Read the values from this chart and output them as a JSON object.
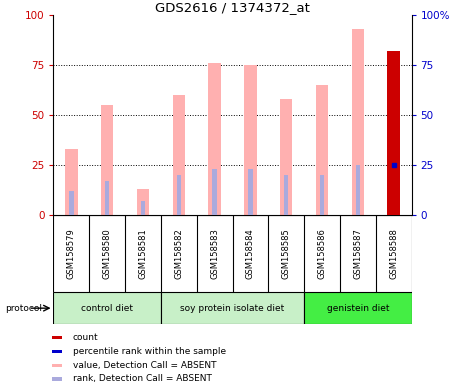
{
  "title": "GDS2616 / 1374372_at",
  "samples": [
    "GSM158579",
    "GSM158580",
    "GSM158581",
    "GSM158582",
    "GSM158583",
    "GSM158584",
    "GSM158585",
    "GSM158586",
    "GSM158587",
    "GSM158588"
  ],
  "pink_bar_heights": [
    33,
    55,
    13,
    60,
    76,
    75,
    58,
    65,
    93,
    82
  ],
  "blue_rank_vals": [
    12,
    17,
    7,
    20,
    23,
    23,
    20,
    20,
    25,
    25
  ],
  "red_count_val": 82,
  "red_count_idx": 9,
  "blue_dot_val": 25,
  "blue_dot_idx": 9,
  "groups": [
    {
      "label": "control diet",
      "start": 0,
      "end": 3
    },
    {
      "label": "soy protein isolate diet",
      "start": 3,
      "end": 7
    },
    {
      "label": "genistein diet",
      "start": 7,
      "end": 10
    }
  ],
  "group_colors": [
    "#c8f0c8",
    "#c8f0c8",
    "#44ee44"
  ],
  "ylim": [
    0,
    100
  ],
  "yticks": [
    0,
    25,
    50,
    75,
    100
  ],
  "pink_color": "#ffb0b0",
  "blue_color": "#aaaadd",
  "red_color": "#cc0000",
  "dot_blue_color": "#0000cc",
  "left_tick_color": "#cc0000",
  "right_tick_color": "#0000cc",
  "bar_width": 0.35,
  "blue_bar_width": 0.12,
  "sample_bg_color": "#d0d0d0",
  "legend_items": [
    {
      "label": "count",
      "color": "#cc0000"
    },
    {
      "label": "percentile rank within the sample",
      "color": "#0000cc"
    },
    {
      "label": "value, Detection Call = ABSENT",
      "color": "#ffb0b0"
    },
    {
      "label": "rank, Detection Call = ABSENT",
      "color": "#aaaadd"
    }
  ]
}
